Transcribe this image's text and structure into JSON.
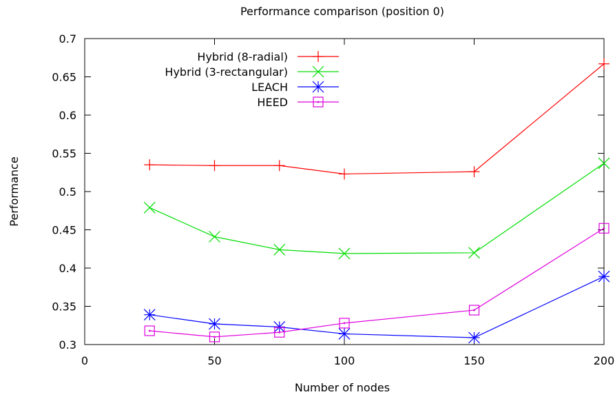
{
  "chart_data": {
    "type": "line",
    "title": "Performance comparison (position 0)",
    "xlabel": "Number of nodes",
    "ylabel": "Performance",
    "xlim": [
      0,
      200
    ],
    "ylim": [
      0.3,
      0.7
    ],
    "xticks": [
      0,
      50,
      100,
      150,
      200
    ],
    "yticks": [
      0.3,
      0.35,
      0.4,
      0.45,
      0.5,
      0.55,
      0.6,
      0.65,
      0.7
    ],
    "xtick_labels": [
      "0",
      "50",
      "100",
      "150",
      "200"
    ],
    "ytick_labels": [
      "0.3",
      "0.35",
      "0.4",
      "0.45",
      "0.5",
      "0.55",
      "0.6",
      "0.65",
      "0.7"
    ],
    "grid": false,
    "legend_position": "top-left",
    "x": [
      25,
      50,
      75,
      100,
      150,
      200
    ],
    "series": [
      {
        "name": "Hybrid (8-radial)",
        "color": "#ff0000",
        "marker": "plus",
        "values": [
          0.535,
          0.534,
          0.534,
          0.523,
          0.526,
          0.667
        ]
      },
      {
        "name": "Hybrid (3-rectangular)",
        "color": "#00dd00",
        "marker": "cross",
        "values": [
          0.479,
          0.441,
          0.424,
          0.419,
          0.42,
          0.537
        ]
      },
      {
        "name": "LEACH",
        "color": "#0000ff",
        "marker": "star",
        "values": [
          0.339,
          0.327,
          0.323,
          0.314,
          0.309,
          0.389
        ]
      },
      {
        "name": "HEED",
        "color": "#dd00dd",
        "marker": "square",
        "values": [
          0.318,
          0.31,
          0.316,
          0.328,
          0.345,
          0.452
        ]
      }
    ]
  }
}
